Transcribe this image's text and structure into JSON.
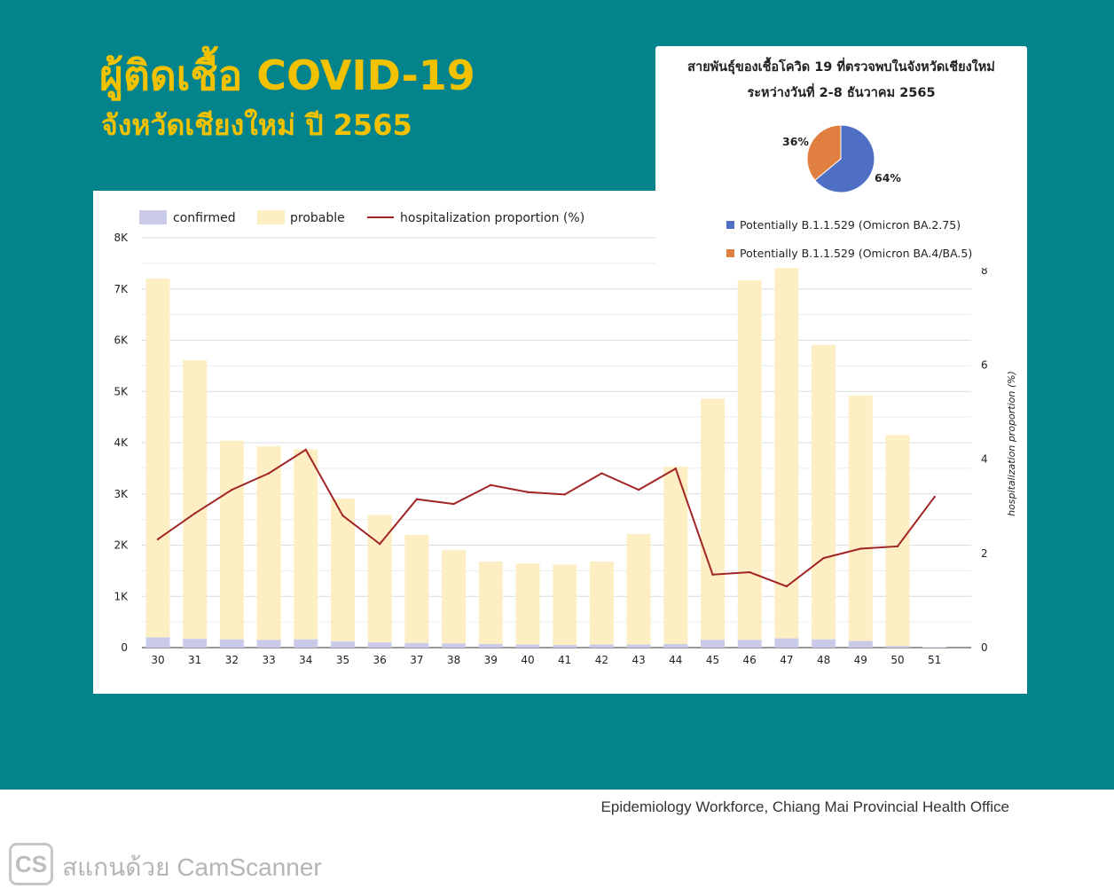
{
  "header": {
    "title": "ผู้ติดเชื้อ COVID-19",
    "subtitle": "จังหวัดเชียงใหม่ ปี 2565"
  },
  "colors": {
    "background_teal": "#03838c",
    "title_yellow": "#f2c200",
    "confirmed": "#c9cbe8",
    "probable": "#fdefc3",
    "line": "#a22525",
    "pie_ba275": "#4e6fc4",
    "pie_ba45": "#e07f3f"
  },
  "chart_data": [
    {
      "type": "bar",
      "stacked": true,
      "legend": [
        "confirmed",
        "probable",
        "hospitalization proportion (%)"
      ],
      "legend_position": "top-left",
      "categories": [
        "30",
        "31",
        "32",
        "33",
        "34",
        "35",
        "36",
        "37",
        "38",
        "39",
        "40",
        "41",
        "42",
        "43",
        "44",
        "45",
        "46",
        "47",
        "48",
        "49",
        "50",
        "51"
      ],
      "series": [
        {
          "name": "confirmed",
          "values": [
            200,
            170,
            160,
            150,
            160,
            120,
            100,
            90,
            80,
            70,
            60,
            50,
            60,
            60,
            70,
            150,
            150,
            180,
            160,
            130,
            30,
            10
          ]
        },
        {
          "name": "probable",
          "values": [
            7000,
            5440,
            3880,
            3780,
            3710,
            2790,
            2490,
            2110,
            1820,
            1610,
            1580,
            1570,
            1620,
            2160,
            3460,
            4710,
            7020,
            7230,
            5750,
            4790,
            4120,
            0
          ]
        },
        {
          "name": "hospitalization proportion (%)",
          "type": "line",
          "axis": "right",
          "values": [
            2.3,
            2.85,
            3.35,
            3.7,
            4.2,
            2.8,
            2.2,
            3.15,
            3.05,
            3.45,
            3.3,
            3.25,
            3.7,
            3.35,
            3.8,
            1.55,
            1.6,
            1.3,
            1.9,
            2.1,
            2.15,
            3.2
          ]
        }
      ],
      "y_left": {
        "ticks": [
          "0",
          "1K",
          "2K",
          "3K",
          "4K",
          "5K",
          "6K",
          "7K",
          "8K"
        ],
        "ylim": [
          0,
          8000
        ]
      },
      "y_right": {
        "label": "hospitalization proportion (%)",
        "ticks": [
          "0",
          "2",
          "4",
          "6",
          "8"
        ],
        "ylim": [
          0,
          8.7
        ]
      },
      "grid": true
    },
    {
      "type": "pie",
      "title_line1": "สายพันธุ์ของเชื้อโควิด 19 ที่ตรวจพบในจังหวัดเชียงใหม่",
      "title_line2": "ระหว่างวันที่ 2-8 ธันวาคม 2565",
      "slices": [
        {
          "label": "Potentially B.1.1.529 (Omicron BA.2.75)",
          "value": 64,
          "pct_label": "64%"
        },
        {
          "label": "Potentially B.1.1.529 (Omicron BA.4/BA.5)",
          "value": 36,
          "pct_label": "36%"
        }
      ]
    }
  ],
  "footer": {
    "source": "Epidemiology Workforce, Chiang Mai Provincial Health Office"
  },
  "watermark": {
    "logo_text": "CS",
    "text": "สแกนด้วย CamScanner"
  }
}
